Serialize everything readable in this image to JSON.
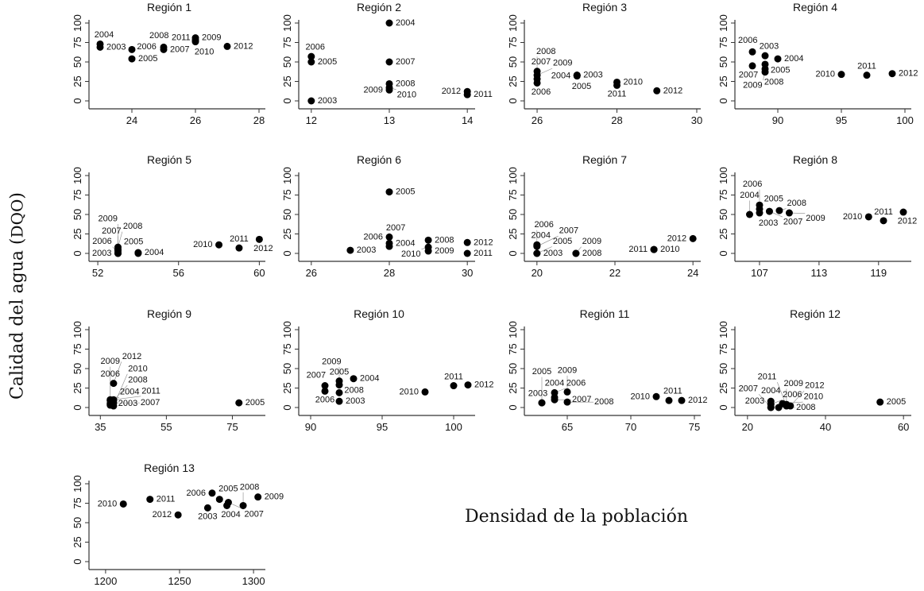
{
  "chart_data": {
    "type": "scatter",
    "ylabel": "Calidad del agua (DQO)",
    "ylabel_main": "Calidad del agua (",
    "ylabel_sc": "DQO",
    "ylabel_end": ")",
    "xlabel": "Densidad de la población",
    "y_ticks": [
      0,
      25,
      50,
      75,
      100
    ],
    "ylim": [
      -8,
      108
    ],
    "point_color": "#000000",
    "grid": false,
    "panels": [
      {
        "title": "Región 1",
        "xlim": [
          22.8,
          28.2
        ],
        "x_ticks": [
          24,
          26,
          28
        ],
        "points": [
          {
            "x": 23,
            "y": 69,
            "label": "2003"
          },
          {
            "x": 23,
            "y": 73,
            "label": "2004"
          },
          {
            "x": 24,
            "y": 54,
            "label": "2005"
          },
          {
            "x": 24,
            "y": 66,
            "label": "2006"
          },
          {
            "x": 25,
            "y": 66,
            "label": "2007"
          },
          {
            "x": 25,
            "y": 69,
            "label": "2008"
          },
          {
            "x": 26,
            "y": 81,
            "label": "2009"
          },
          {
            "x": 26,
            "y": 76,
            "label": "2010"
          },
          {
            "x": 26,
            "y": 78,
            "label": "2011"
          },
          {
            "x": 27,
            "y": 70,
            "label": "2012"
          }
        ]
      },
      {
        "title": "Región 2",
        "xlim": [
          11.9,
          14.1
        ],
        "x_ticks": [
          12,
          13,
          14
        ],
        "points": [
          {
            "x": 12,
            "y": 0,
            "label": "2003"
          },
          {
            "x": 13,
            "y": 100,
            "label": "2004"
          },
          {
            "x": 12,
            "y": 50,
            "label": "2005"
          },
          {
            "x": 12,
            "y": 57,
            "label": "2006"
          },
          {
            "x": 13,
            "y": 50,
            "label": "2007"
          },
          {
            "x": 13,
            "y": 22,
            "label": "2008"
          },
          {
            "x": 13,
            "y": 14,
            "label": "2009"
          },
          {
            "x": 13,
            "y": 17,
            "label": "2010"
          },
          {
            "x": 14,
            "y": 8,
            "label": "2011"
          },
          {
            "x": 14,
            "y": 12,
            "label": "2012"
          }
        ]
      },
      {
        "title": "Región 3",
        "xlim": [
          25.8,
          30.1
        ],
        "x_ticks": [
          26,
          28,
          30
        ],
        "points": [
          {
            "x": 27,
            "y": 33,
            "label": "2003"
          },
          {
            "x": 27,
            "y": 32,
            "label": "2004"
          },
          {
            "x": 27,
            "y": 33,
            "label": "2005"
          },
          {
            "x": 26,
            "y": 23,
            "label": "2006"
          },
          {
            "x": 26,
            "y": 38,
            "label": "2007"
          },
          {
            "x": 26,
            "y": 28,
            "label": "2008"
          },
          {
            "x": 26,
            "y": 33,
            "label": "2009"
          },
          {
            "x": 28,
            "y": 24,
            "label": "2010"
          },
          {
            "x": 28,
            "y": 20,
            "label": "2011"
          },
          {
            "x": 29,
            "y": 13,
            "label": "2012"
          }
        ]
      },
      {
        "title": "Región 4",
        "xlim": [
          87,
          100.5
        ],
        "x_ticks": [
          90,
          95,
          100
        ],
        "points": [
          {
            "x": 89,
            "y": 58,
            "label": "2003"
          },
          {
            "x": 90,
            "y": 54,
            "label": "2004"
          },
          {
            "x": 89,
            "y": 47,
            "label": "2005"
          },
          {
            "x": 88,
            "y": 63,
            "label": "2006"
          },
          {
            "x": 88,
            "y": 45,
            "label": "2007"
          },
          {
            "x": 89,
            "y": 37,
            "label": "2008"
          },
          {
            "x": 89,
            "y": 41,
            "label": "2009"
          },
          {
            "x": 95,
            "y": 34,
            "label": "2010"
          },
          {
            "x": 97,
            "y": 33,
            "label": "2011"
          },
          {
            "x": 99,
            "y": 35,
            "label": "2012"
          }
        ]
      },
      {
        "title": "Región 5",
        "xlim": [
          51.8,
          60.3
        ],
        "x_ticks": [
          52,
          56,
          60
        ],
        "points": [
          {
            "x": 53,
            "y": 0,
            "label": "2003"
          },
          {
            "x": 54,
            "y": 1,
            "label": "2004"
          },
          {
            "x": 54,
            "y": 0,
            "label": "2005"
          },
          {
            "x": 53,
            "y": 0,
            "label": "2006"
          },
          {
            "x": 53,
            "y": 5,
            "label": "2007"
          },
          {
            "x": 53,
            "y": 8,
            "label": "2008"
          },
          {
            "x": 53,
            "y": 3,
            "label": "2009"
          },
          {
            "x": 58,
            "y": 11,
            "label": "2010"
          },
          {
            "x": 59,
            "y": 7,
            "label": "2011"
          },
          {
            "x": 60,
            "y": 18,
            "label": "2012"
          }
        ]
      },
      {
        "title": "Región 6",
        "xlim": [
          25.8,
          30.2
        ],
        "x_ticks": [
          26,
          28,
          30
        ],
        "points": [
          {
            "x": 27,
            "y": 4,
            "label": "2003"
          },
          {
            "x": 28,
            "y": 13,
            "label": "2004"
          },
          {
            "x": 28,
            "y": 79,
            "label": "2005"
          },
          {
            "x": 28,
            "y": 21,
            "label": "2006"
          },
          {
            "x": 28,
            "y": 9,
            "label": "2007"
          },
          {
            "x": 29,
            "y": 17,
            "label": "2008"
          },
          {
            "x": 29,
            "y": 3,
            "label": "2009"
          },
          {
            "x": 29,
            "y": 8,
            "label": "2010"
          },
          {
            "x": 30,
            "y": 0,
            "label": "2011"
          },
          {
            "x": 30,
            "y": 14,
            "label": "2012"
          }
        ]
      },
      {
        "title": "Región 7",
        "xlim": [
          19.8,
          24.2
        ],
        "x_ticks": [
          20,
          22,
          24
        ],
        "points": [
          {
            "x": 20,
            "y": 0,
            "label": "2003"
          },
          {
            "x": 20,
            "y": 11,
            "label": "2004"
          },
          {
            "x": 20,
            "y": 0,
            "label": "2005"
          },
          {
            "x": 20,
            "y": 10,
            "label": "2006"
          },
          {
            "x": 20,
            "y": 9,
            "label": "2007"
          },
          {
            "x": 21,
            "y": 0,
            "label": "2008"
          },
          {
            "x": 21,
            "y": 0,
            "label": "2009"
          },
          {
            "x": 23,
            "y": 5,
            "label": "2010"
          },
          {
            "x": 23,
            "y": 5,
            "label": "2011"
          },
          {
            "x": 24,
            "y": 19,
            "label": "2012"
          }
        ]
      },
      {
        "title": "Región 8",
        "xlim": [
          105,
          122.3
        ],
        "x_ticks": [
          107,
          113,
          119
        ],
        "points": [
          {
            "x": 107,
            "y": 52,
            "label": "2003"
          },
          {
            "x": 106,
            "y": 50,
            "label": "2004"
          },
          {
            "x": 107,
            "y": 57,
            "label": "2005"
          },
          {
            "x": 107,
            "y": 62,
            "label": "2006"
          },
          {
            "x": 108,
            "y": 54,
            "label": "2007"
          },
          {
            "x": 109,
            "y": 55,
            "label": "2008"
          },
          {
            "x": 110,
            "y": 52,
            "label": "2009"
          },
          {
            "x": 118,
            "y": 47,
            "label": "2010"
          },
          {
            "x": 119.5,
            "y": 42,
            "label": "2011"
          },
          {
            "x": 121.5,
            "y": 53,
            "label": "2012"
          }
        ]
      },
      {
        "title": "Región 9",
        "xlim": [
          33,
          85
        ],
        "x_ticks": [
          35,
          55,
          75
        ],
        "points": [
          {
            "x": 38,
            "y": 5,
            "label": "2003"
          },
          {
            "x": 38,
            "y": 9,
            "label": "2004"
          },
          {
            "x": 77,
            "y": 6,
            "label": "2005"
          },
          {
            "x": 38,
            "y": 3,
            "label": "2006"
          },
          {
            "x": 39,
            "y": 6,
            "label": "2007"
          },
          {
            "x": 39,
            "y": 9,
            "label": "2008"
          },
          {
            "x": 38,
            "y": 10,
            "label": "2009"
          },
          {
            "x": 39,
            "y": 2,
            "label": "2010"
          },
          {
            "x": 39,
            "y": 10,
            "label": "2011"
          },
          {
            "x": 39,
            "y": 31,
            "label": "2012"
          }
        ]
      },
      {
        "title": "Región 10",
        "xlim": [
          89.5,
          101.5
        ],
        "x_ticks": [
          90,
          95,
          100
        ],
        "points": [
          {
            "x": 92,
            "y": 8,
            "label": "2003"
          },
          {
            "x": 93,
            "y": 37,
            "label": "2004"
          },
          {
            "x": 92,
            "y": 34,
            "label": "2005"
          },
          {
            "x": 91,
            "y": 21,
            "label": "2006"
          },
          {
            "x": 91,
            "y": 28,
            "label": "2007"
          },
          {
            "x": 92,
            "y": 19,
            "label": "2008"
          },
          {
            "x": 92,
            "y": 29,
            "label": "2009"
          },
          {
            "x": 98,
            "y": 20,
            "label": "2010"
          },
          {
            "x": 100,
            "y": 28,
            "label": "2011"
          },
          {
            "x": 101,
            "y": 29,
            "label": "2012"
          }
        ]
      },
      {
        "title": "Región 11",
        "xlim": [
          62,
          75.5
        ],
        "x_ticks": [
          65,
          70,
          75
        ],
        "points": [
          {
            "x": 63,
            "y": 6,
            "label": "2003"
          },
          {
            "x": 64,
            "y": 13,
            "label": "2004"
          },
          {
            "x": 63,
            "y": 6,
            "label": "2005"
          },
          {
            "x": 64,
            "y": 19,
            "label": "2006"
          },
          {
            "x": 64,
            "y": 10,
            "label": "2007"
          },
          {
            "x": 65,
            "y": 7,
            "label": "2008"
          },
          {
            "x": 65,
            "y": 20,
            "label": "2009"
          },
          {
            "x": 72,
            "y": 14,
            "label": "2010"
          },
          {
            "x": 73,
            "y": 9,
            "label": "2011"
          },
          {
            "x": 74,
            "y": 9,
            "label": "2012"
          }
        ]
      },
      {
        "title": "Región 12",
        "xlim": [
          18,
          62
        ],
        "x_ticks": [
          20,
          40,
          60
        ],
        "points": [
          {
            "x": 26,
            "y": 8,
            "label": "2003"
          },
          {
            "x": 26,
            "y": 0,
            "label": "2004"
          },
          {
            "x": 54,
            "y": 7,
            "label": "2005"
          },
          {
            "x": 26,
            "y": 4,
            "label": "2006"
          },
          {
            "x": 26,
            "y": 0,
            "label": "2007"
          },
          {
            "x": 28,
            "y": 0,
            "label": "2008"
          },
          {
            "x": 30,
            "y": 4,
            "label": "2009"
          },
          {
            "x": 29,
            "y": 5,
            "label": "2010"
          },
          {
            "x": 30,
            "y": 2,
            "label": "2011"
          },
          {
            "x": 31,
            "y": 2,
            "label": "2012"
          }
        ]
      },
      {
        "title": "Región 13",
        "xlim": [
          1192,
          1308
        ],
        "x_ticks": [
          1200,
          1250,
          1300
        ],
        "points": [
          {
            "x": 1269,
            "y": 69,
            "label": "2003"
          },
          {
            "x": 1282,
            "y": 72,
            "label": "2004"
          },
          {
            "x": 1277,
            "y": 80,
            "label": "2005"
          },
          {
            "x": 1272,
            "y": 88,
            "label": "2006"
          },
          {
            "x": 1283,
            "y": 76,
            "label": "2007"
          },
          {
            "x": 1293,
            "y": 72,
            "label": "2008"
          },
          {
            "x": 1303,
            "y": 83,
            "label": "2009"
          },
          {
            "x": 1212,
            "y": 74,
            "label": "2010"
          },
          {
            "x": 1230,
            "y": 80,
            "label": "2011"
          },
          {
            "x": 1249,
            "y": 60,
            "label": "2012"
          }
        ]
      }
    ]
  }
}
